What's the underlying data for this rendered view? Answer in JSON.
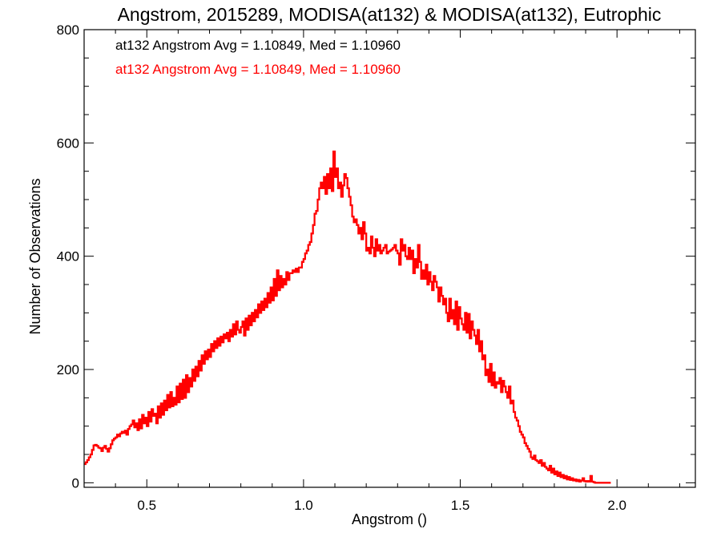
{
  "chart_data": {
    "type": "histogram",
    "title": "Angstrom, 2015289, MODISA(at132) & MODISA(at132), Eutrophic",
    "xlabel": "Angstrom ()",
    "ylabel": "Number of Observations",
    "xlim": [
      0.3,
      2.25
    ],
    "ylim": [
      -8,
      800
    ],
    "xticks": [
      0.5,
      1.0,
      1.5,
      2.0
    ],
    "xtick_labels": [
      "0.5",
      "1.0",
      "1.5",
      "2.0"
    ],
    "yticks": [
      0,
      200,
      400,
      600,
      800
    ],
    "ytick_labels": [
      "0",
      "200",
      "400",
      "600",
      "800"
    ],
    "grid": false,
    "legend": {
      "placement": "top-left",
      "entries": [
        {
          "text": "at132 Angstrom Avg = 1.10849, Med = 1.10960",
          "color": "#000000"
        },
        {
          "text": "at132 Angstrom Avg = 1.10849, Med = 1.10960",
          "color": "#ff0000"
        }
      ]
    },
    "series": [
      {
        "color": "#ff0000",
        "style": "step",
        "x_start": 0.3,
        "bin_width": 0.005,
        "values": [
          33,
          36,
          40,
          45,
          50,
          58,
          66,
          67,
          65,
          62,
          61,
          56,
          62,
          65,
          60,
          55,
          61,
          68,
          75,
          78,
          80,
          85,
          82,
          87,
          90,
          88,
          92,
          85,
          95,
          100,
          103,
          110,
          98,
          105,
          93,
          112,
          96,
          120,
          105,
          115,
          100,
          125,
          108,
          130,
          118,
          122,
          105,
          135,
          115,
          140,
          120,
          145,
          128,
          155,
          133,
          160,
          135,
          150,
          138,
          170,
          142,
          175,
          148,
          182,
          150,
          190,
          160,
          185,
          170,
          200,
          180,
          205,
          188,
          215,
          198,
          225,
          210,
          232,
          218,
          235,
          222,
          245,
          232,
          250,
          238,
          255,
          242,
          258,
          248,
          262,
          255,
          265,
          250,
          270,
          258,
          280,
          262,
          285,
          270,
          265,
          275,
          285,
          260,
          290,
          270,
          295,
          278,
          300,
          285,
          305,
          292,
          315,
          300,
          320,
          305,
          325,
          310,
          335,
          318,
          345,
          322,
          360,
          330,
          375,
          340,
          365,
          345,
          360,
          350,
          372,
          358,
          370,
          370,
          375,
          372,
          378,
          372,
          380,
          380,
          390,
          395,
          405,
          410,
          420,
          425,
          440,
          455,
          475,
          480,
          500,
          520,
          530,
          520,
          540,
          510,
          545,
          520,
          555,
          515,
          585,
          540,
          555,
          520,
          530,
          505,
          525,
          545,
          538,
          520,
          505,
          490,
          470,
          460,
          465,
          455,
          440,
          450,
          430,
          460,
          440,
          410,
          415,
          405,
          435,
          415,
          400,
          430,
          410,
          420,
          405,
          410,
          415,
          420,
          405,
          408,
          410,
          412,
          415,
          420,
          410,
          405,
          385,
          430,
          410,
          420,
          400,
          395,
          415,
          395,
          410,
          370,
          395,
          380,
          420,
          390,
          360,
          375,
          360,
          385,
          350,
          372,
          355,
          340,
          365,
          355,
          345,
          320,
          345,
          330,
          315,
          325,
          300,
          285,
          325,
          290,
          305,
          280,
          320,
          270,
          310,
          290,
          280,
          270,
          300,
          265,
          298,
          255,
          285,
          270,
          260,
          245,
          270,
          232,
          250,
          218,
          225,
          190,
          200,
          178,
          210,
          172,
          195,
          168,
          178,
          175,
          185,
          160,
          180,
          170,
          160,
          150,
          170,
          140,
          145,
          125,
          115,
          110,
          100,
          90,
          85,
          80,
          70,
          65,
          60,
          55,
          45,
          42,
          48,
          40,
          38,
          35,
          40,
          30,
          35,
          28,
          25,
          22,
          30,
          18,
          25,
          15,
          20,
          12,
          18,
          10,
          14,
          8,
          12,
          6,
          10,
          5,
          8,
          4,
          6,
          3,
          5,
          2,
          4,
          8,
          3,
          2,
          3,
          2,
          12,
          2,
          1,
          0,
          0,
          0,
          0,
          0,
          0,
          0,
          0,
          0,
          0
        ]
      },
      {
        "color": "#ff0000",
        "style": "step",
        "x_start": 0.3,
        "bin_width": 0.005,
        "values": [
          33,
          36,
          40,
          45,
          50,
          58,
          66,
          67,
          65,
          62,
          61,
          56,
          62,
          65,
          60,
          55,
          61,
          68,
          75,
          78,
          80,
          85,
          82,
          87,
          90,
          88,
          92,
          85,
          95,
          100,
          103,
          110,
          98,
          105,
          93,
          112,
          96,
          120,
          105,
          115,
          100,
          125,
          108,
          130,
          118,
          122,
          105,
          135,
          115,
          140,
          120,
          145,
          128,
          155,
          133,
          160,
          135,
          150,
          138,
          170,
          142,
          175,
          148,
          182,
          150,
          190,
          160,
          185,
          170,
          200,
          180,
          205,
          188,
          215,
          198,
          225,
          210,
          232,
          218,
          235,
          222,
          245,
          232,
          250,
          238,
          255,
          242,
          258,
          248,
          262,
          255,
          265,
          250,
          270,
          258,
          280,
          262,
          285,
          270,
          265,
          275,
          285,
          260,
          290,
          270,
          295,
          278,
          300,
          285,
          305,
          292,
          315,
          300,
          320,
          305,
          325,
          310,
          335,
          318,
          345,
          322,
          360,
          330,
          375,
          340,
          365,
          345,
          360,
          350,
          372,
          358,
          370,
          370,
          375,
          372,
          378,
          372,
          380,
          380,
          390,
          395,
          405,
          410,
          420,
          425,
          440,
          455,
          475,
          480,
          500,
          520,
          530,
          520,
          540,
          510,
          545,
          520,
          555,
          515,
          585,
          540,
          555,
          520,
          530,
          505,
          525,
          545,
          538,
          520,
          505,
          490,
          470,
          460,
          465,
          455,
          440,
          450,
          430,
          460,
          440,
          410,
          415,
          405,
          435,
          415,
          400,
          430,
          410,
          420,
          405,
          410,
          415,
          420,
          405,
          408,
          410,
          412,
          415,
          420,
          410,
          405,
          385,
          430,
          410,
          420,
          400,
          395,
          415,
          395,
          410,
          370,
          395,
          380,
          420,
          390,
          360,
          375,
          360,
          385,
          350,
          372,
          355,
          340,
          365,
          355,
          345,
          320,
          345,
          330,
          315,
          325,
          300,
          285,
          325,
          290,
          305,
          280,
          320,
          270,
          310,
          290,
          280,
          270,
          300,
          265,
          298,
          255,
          285,
          270,
          260,
          245,
          270,
          232,
          250,
          218,
          225,
          190,
          200,
          178,
          210,
          172,
          195,
          168,
          178,
          175,
          185,
          160,
          180,
          170,
          160,
          150,
          170,
          140,
          145,
          125,
          115,
          110,
          100,
          90,
          85,
          80,
          70,
          65,
          60,
          55,
          45,
          42,
          48,
          40,
          38,
          35,
          40,
          30,
          35,
          28,
          25,
          22,
          30,
          18,
          25,
          15,
          20,
          12,
          18,
          10,
          14,
          8,
          12,
          6,
          10,
          5,
          8,
          4,
          6,
          3,
          5,
          2,
          4,
          8,
          3,
          2,
          3,
          2,
          12,
          2,
          1,
          0,
          0,
          0,
          0,
          0,
          0,
          0,
          0,
          0,
          0
        ]
      }
    ]
  }
}
